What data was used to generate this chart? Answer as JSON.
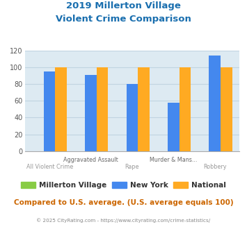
{
  "title_line1": "2019 Millerton Village",
  "title_line2": "Violent Crime Comparison",
  "title_color": "#1a6faf",
  "categories": [
    "All Violent Crime",
    "Aggravated Assault",
    "Rape",
    "Murder & Mans...",
    "Robbery"
  ],
  "cat_labels_top": [
    "",
    "Aggravated Assault",
    "",
    "Murder & Mans...",
    ""
  ],
  "cat_labels_bot": [
    "All Violent Crime",
    "",
    "Rape",
    "",
    "Robbery"
  ],
  "millerton_values": [
    0,
    0,
    0,
    0,
    0
  ],
  "newyork_values": [
    95,
    91,
    80,
    58,
    114
  ],
  "national_values": [
    100,
    100,
    100,
    100,
    100
  ],
  "millerton_color": "#88cc44",
  "newyork_color": "#4488ee",
  "national_color": "#ffaa22",
  "ylim": [
    0,
    120
  ],
  "yticks": [
    0,
    20,
    40,
    60,
    80,
    100,
    120
  ],
  "plot_bg_color": "#ddeaf2",
  "legend_labels": [
    "Millerton Village",
    "New York",
    "National"
  ],
  "footer_text": "Compared to U.S. average. (U.S. average equals 100)",
  "footer_color": "#cc6600",
  "copyright_text": "© 2025 CityRating.com - https://www.cityrating.com/crime-statistics/",
  "copyright_color": "#888888",
  "grid_color": "#c0d4e0",
  "bar_width": 0.28
}
